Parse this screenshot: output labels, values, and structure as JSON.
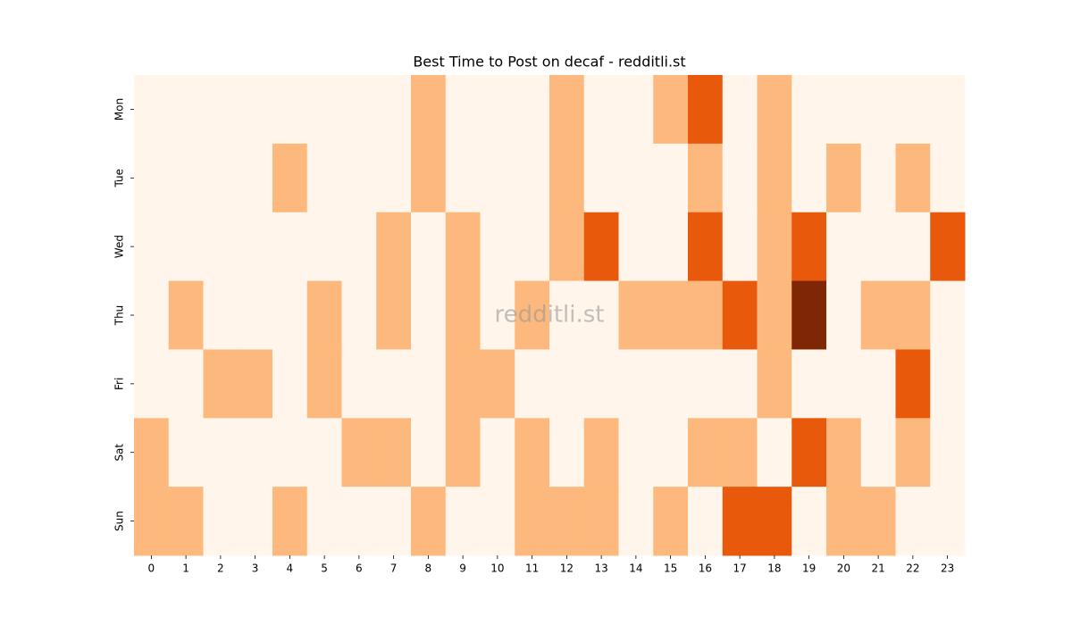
{
  "chart_data": {
    "type": "heatmap",
    "title": "Best Time to Post on decaf - redditli.st",
    "watermark": "redditli.st",
    "x": [
      0,
      1,
      2,
      3,
      4,
      5,
      6,
      7,
      8,
      9,
      10,
      11,
      12,
      13,
      14,
      15,
      16,
      17,
      18,
      19,
      20,
      21,
      22,
      23
    ],
    "y": [
      "Mon",
      "Tue",
      "Wed",
      "Thu",
      "Fri",
      "Sat",
      "Sun"
    ],
    "values": [
      [
        0,
        0,
        0,
        0,
        0,
        0,
        0,
        0,
        1,
        0,
        0,
        0,
        1,
        0,
        0,
        1,
        2,
        0,
        1,
        0,
        0,
        0,
        0,
        0
      ],
      [
        0,
        0,
        0,
        0,
        1,
        0,
        0,
        0,
        1,
        0,
        0,
        0,
        1,
        0,
        0,
        0,
        1,
        0,
        1,
        0,
        1,
        0,
        1,
        0
      ],
      [
        0,
        0,
        0,
        0,
        0,
        0,
        0,
        1,
        0,
        1,
        0,
        0,
        1,
        2,
        0,
        0,
        2,
        0,
        1,
        2,
        0,
        0,
        0,
        2
      ],
      [
        0,
        1,
        0,
        0,
        0,
        1,
        0,
        1,
        0,
        1,
        0,
        1,
        0,
        0,
        1,
        1,
        1,
        2,
        1,
        3,
        0,
        1,
        1,
        0
      ],
      [
        0,
        0,
        1,
        1,
        0,
        1,
        0,
        0,
        0,
        1,
        1,
        0,
        0,
        0,
        0,
        0,
        0,
        0,
        1,
        0,
        0,
        0,
        2,
        0
      ],
      [
        1,
        0,
        0,
        0,
        0,
        0,
        1,
        1,
        0,
        1,
        0,
        1,
        0,
        1,
        0,
        0,
        1,
        1,
        0,
        2,
        1,
        0,
        1,
        0
      ],
      [
        1,
        1,
        0,
        0,
        1,
        0,
        0,
        0,
        1,
        0,
        0,
        1,
        1,
        1,
        0,
        1,
        0,
        2,
        2,
        0,
        1,
        1,
        0,
        0
      ]
    ],
    "clim": [
      0,
      3
    ],
    "colormap": [
      "#fff5eb",
      "#fdb97d",
      "#e8590c",
      "#7f2704"
    ]
  }
}
